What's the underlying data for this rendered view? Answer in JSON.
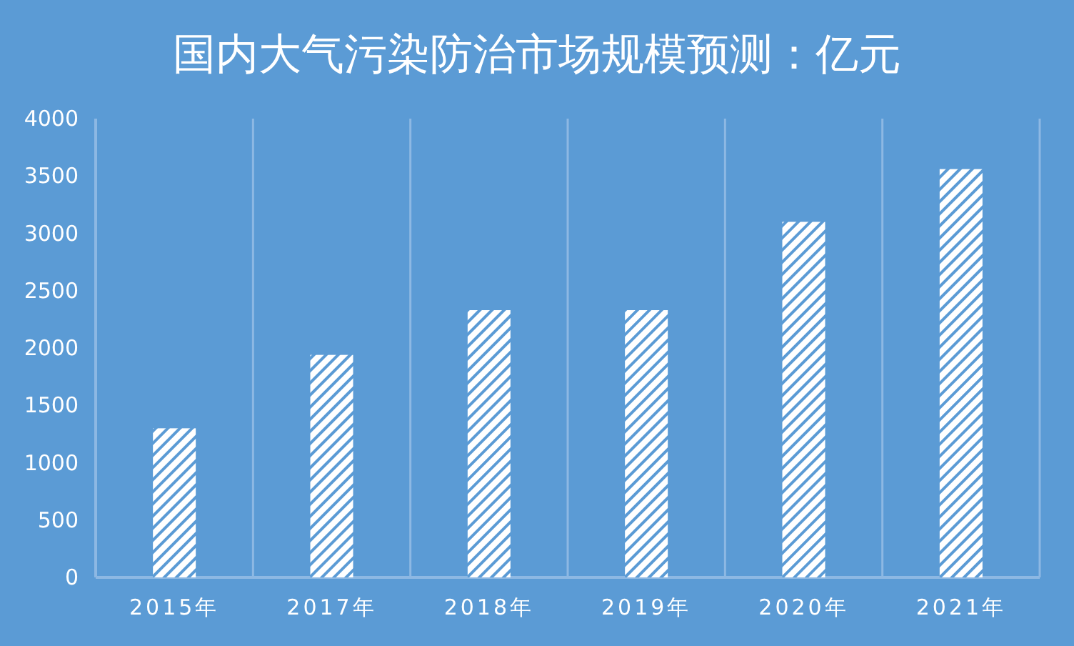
{
  "chart_data": {
    "type": "bar",
    "title": "国内大气污染防治市场规模预测：亿元",
    "categories": [
      "2015年",
      "2017年",
      "2018年",
      "2019年",
      "2020年",
      "2021年"
    ],
    "values": [
      1300,
      1940,
      2330,
      2330,
      3100,
      3560
    ],
    "color": "#ffffff",
    "ylim": [
      0,
      4000
    ],
    "yticks": [
      0,
      500,
      1000,
      1500,
      2000,
      2500,
      3000,
      3500,
      4000
    ],
    "grid": "x"
  }
}
